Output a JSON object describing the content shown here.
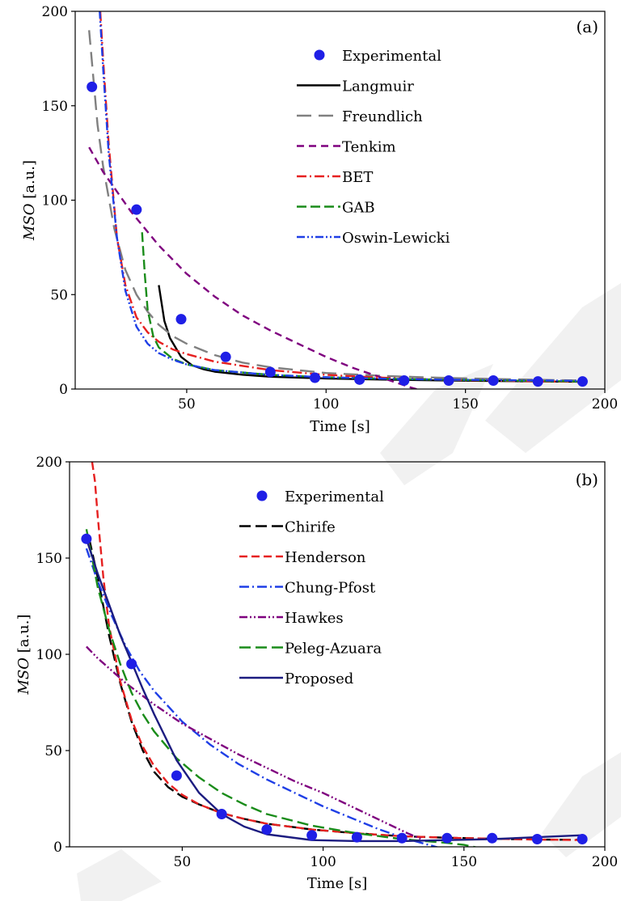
{
  "colors": {
    "experimental": "#1f1fe6",
    "black": "#000000",
    "gray": "#808080",
    "purple": "#7f007f",
    "red": "#e62020",
    "green": "#1a8c1a",
    "blue": "#1f3fe6",
    "navy": "#1c1c80"
  },
  "chart_data": [
    {
      "type": "scatter",
      "panel_label": "(a)",
      "xlabel": "Time [s]",
      "ylabel_var": "MSO",
      "ylabel_unit": "[a.u.]",
      "xlim": [
        10,
        200
      ],
      "ylim": [
        0,
        200
      ],
      "xticks": [
        50,
        100,
        150,
        200
      ],
      "yticks": [
        0,
        50,
        100,
        150,
        200
      ],
      "grid": false,
      "legend_position": "top-right",
      "series": [
        {
          "name": "Experimental",
          "kind": "points",
          "color": "#1f1fe6",
          "x": [
            16,
            32,
            48,
            64,
            80,
            96,
            112,
            128,
            144,
            160,
            176,
            192
          ],
          "y": [
            160,
            95,
            37,
            17,
            9,
            6,
            5,
            4.5,
            4.5,
            4.5,
            4,
            4
          ]
        },
        {
          "name": "Langmuir",
          "kind": "line",
          "color": "#000000",
          "dash": "",
          "x": [
            40,
            42,
            44,
            46,
            48,
            52,
            56,
            60,
            70,
            80,
            100,
            120,
            140,
            160,
            180,
            192
          ],
          "y": [
            55,
            36,
            27,
            22,
            17,
            12.5,
            10.5,
            9.2,
            7.6,
            6.5,
            5.6,
            5,
            4.6,
            4.3,
            4,
            3.9
          ]
        },
        {
          "name": "Freundlich",
          "kind": "line",
          "color": "#808080",
          "dash": "18 9",
          "x": [
            15,
            18,
            20,
            24,
            28,
            32,
            36,
            40,
            45,
            50,
            60,
            70,
            80,
            100,
            120,
            140,
            160,
            180,
            192
          ],
          "y": [
            190,
            140,
            118,
            85,
            63,
            50,
            41,
            34,
            28,
            24,
            18,
            14,
            11.5,
            8.5,
            7,
            6,
            5.3,
            4.8,
            4.5
          ]
        },
        {
          "name": "Tenkim",
          "kind": "line",
          "color": "#7f007f",
          "dash": "9 6",
          "x": [
            15,
            20,
            30,
            40,
            50,
            60,
            70,
            80,
            90,
            100,
            110,
            120,
            130,
            137
          ],
          "y": [
            128,
            115,
            94,
            76,
            61,
            49,
            39,
            31,
            24,
            17,
            11,
            6,
            1,
            -2
          ]
        },
        {
          "name": "BET",
          "kind": "line",
          "color": "#e62020",
          "dash": "12 4 2 4",
          "x": [
            19,
            20,
            22,
            25,
            28,
            32,
            36,
            40,
            45,
            50,
            60,
            80,
            100,
            120,
            140,
            160,
            180,
            192
          ],
          "y": [
            200,
            175,
            130,
            80,
            55,
            38,
            30,
            25,
            21,
            18.5,
            14.5,
            10,
            7.5,
            6,
            5,
            4.4,
            4,
            3.8
          ]
        },
        {
          "name": "GAB",
          "kind": "line",
          "color": "#1a8c1a",
          "dash": "12 5",
          "x": [
            34,
            35,
            36,
            38,
            40,
            45,
            50,
            60,
            80,
            100,
            120,
            140,
            160,
            180,
            192
          ],
          "y": [
            83,
            60,
            42,
            28,
            22,
            16,
            13,
            10,
            7.5,
            6.2,
            5.5,
            5,
            4.6,
            4.2,
            4
          ]
        },
        {
          "name": "Oswin-Lewicki",
          "kind": "line",
          "color": "#1f3fe6",
          "dash": "10 3 2 3 2 3",
          "x": [
            18,
            19,
            20,
            22,
            25,
            28,
            32,
            36,
            40,
            45,
            50,
            60,
            80,
            100,
            120,
            140,
            160,
            180,
            192
          ],
          "y": [
            220,
            195,
            170,
            125,
            80,
            52,
            33,
            24,
            19,
            15.5,
            13,
            10,
            7.5,
            6.2,
            5.5,
            5,
            4.7,
            4.5,
            4.3
          ]
        }
      ]
    },
    {
      "type": "scatter",
      "panel_label": "(b)",
      "xlabel": "Time [s]",
      "ylabel_var": "MSO",
      "ylabel_unit": "[a.u.]",
      "xlim": [
        10,
        200
      ],
      "ylim": [
        0,
        200
      ],
      "xticks": [
        50,
        100,
        150,
        200
      ],
      "yticks": [
        0,
        50,
        100,
        150,
        200
      ],
      "grid": false,
      "legend_position": "top-center",
      "series": [
        {
          "name": "Experimental",
          "kind": "points",
          "color": "#1f1fe6",
          "x": [
            16,
            32,
            48,
            64,
            80,
            96,
            112,
            128,
            144,
            160,
            176,
            192
          ],
          "y": [
            160,
            95,
            37,
            17,
            9,
            6,
            5,
            4.5,
            4.5,
            4.5,
            4,
            4
          ]
        },
        {
          "name": "Chirife",
          "kind": "line",
          "color": "#000000",
          "dash": "14 6",
          "x": [
            17,
            20,
            24,
            28,
            32,
            36,
            40,
            45,
            50,
            56,
            64,
            72,
            80,
            96,
            112,
            128,
            144,
            160,
            176,
            192
          ],
          "y": [
            160,
            140,
            110,
            85,
            65,
            50,
            39,
            31,
            26,
            22,
            17.5,
            14.5,
            12,
            9,
            7,
            5.5,
            4.7,
            4.2,
            3.8,
            3.6
          ]
        },
        {
          "name": "Henderson",
          "kind": "line",
          "color": "#e62020",
          "dash": "10 5",
          "x": [
            18,
            19,
            20,
            22,
            24,
            28,
            32,
            36,
            40,
            45,
            50,
            56,
            64,
            72,
            80,
            96,
            112,
            128,
            144,
            160,
            176,
            192
          ],
          "y": [
            200,
            190,
            172,
            140,
            115,
            86,
            66,
            52,
            42,
            33,
            27,
            22,
            17.5,
            14.5,
            12,
            9,
            7,
            5.5,
            4.7,
            4.2,
            3.8,
            3.5
          ]
        },
        {
          "name": "Chung-Pfost",
          "kind": "line",
          "color": "#1f3fe6",
          "dash": "12 4 2 4",
          "x": [
            16,
            20,
            25,
            30,
            35,
            40,
            50,
            60,
            70,
            80,
            90,
            100,
            110,
            120,
            130,
            140,
            145
          ],
          "y": [
            155,
            138,
            120,
            104,
            91,
            81,
            65,
            53,
            43,
            35,
            28,
            21,
            15,
            9,
            4,
            0,
            -2
          ]
        },
        {
          "name": "Hawkes",
          "kind": "line",
          "color": "#7f007f",
          "dash": "10 3 2 3 2 3",
          "x": [
            16,
            20,
            30,
            40,
            50,
            60,
            70,
            80,
            90,
            100,
            110,
            120,
            130,
            135
          ],
          "y": [
            104,
            98,
            85,
            74,
            64,
            56,
            48,
            41,
            34,
            28,
            21,
            14,
            7,
            4
          ]
        },
        {
          "name": "Peleg-Azuara",
          "kind": "line",
          "color": "#1a8c1a",
          "dash": "14 6",
          "x": [
            16,
            18,
            20,
            24,
            28,
            32,
            36,
            40,
            48,
            56,
            64,
            72,
            80,
            96,
            112,
            128,
            144,
            150,
            155
          ],
          "y": [
            165,
            150,
            135,
            113,
            95,
            80,
            69,
            60,
            46,
            36,
            28,
            22,
            17,
            11,
            7,
            4,
            2,
            1,
            -0.5
          ]
        },
        {
          "name": "Proposed",
          "kind": "line",
          "color": "#1c1c80",
          "dash": "",
          "x": [
            16,
            20,
            24,
            28,
            32,
            36,
            40,
            48,
            56,
            64,
            72,
            80,
            96,
            112,
            128,
            144,
            160,
            176,
            192
          ],
          "y": [
            160,
            142,
            126,
            110,
            96,
            82,
            69,
            45,
            28,
            17,
            10.5,
            6.5,
            3.5,
            3,
            3,
            3.5,
            4,
            5,
            6
          ]
        }
      ]
    }
  ]
}
